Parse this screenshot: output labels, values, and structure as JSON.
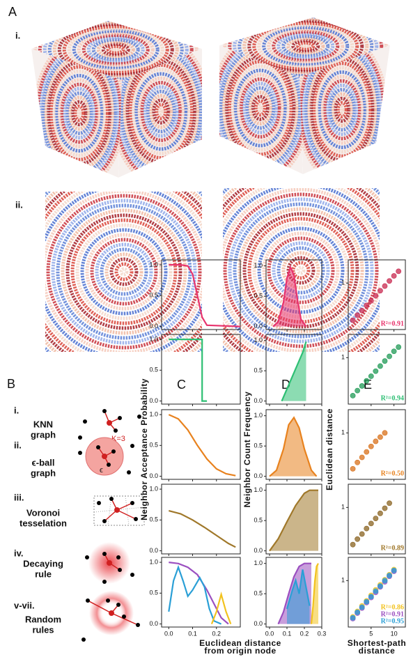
{
  "panel_a": {
    "label": "A",
    "row_labels": [
      "i.",
      "ii."
    ]
  },
  "panel_b": {
    "label": "B",
    "items": [
      {
        "numeral": "i.",
        "name": [
          "KNN",
          "graph"
        ],
        "note": "K=3"
      },
      {
        "numeral": "ii.",
        "name": [
          "ϵ-ball",
          "graph"
        ],
        "note": "ϵ"
      },
      {
        "numeral": "iii.",
        "name": [
          "Voronoi",
          "tesselation"
        ]
      },
      {
        "numeral": "iv.",
        "name": [
          "Decaying",
          "rule"
        ]
      },
      {
        "numeral": "v-vii.",
        "name": [
          "Random",
          "rules"
        ]
      }
    ]
  },
  "chart_data": [
    {
      "type": "line",
      "label": "C",
      "ylabel": "Neighbor Acceptance Probability",
      "xlabel": [
        "Euclidean distance",
        "from origin node"
      ],
      "xlim": [
        -0.03,
        0.3
      ],
      "xticks": [
        {
          "value": 0,
          "label": "0.0"
        },
        {
          "value": 0.1,
          "label": "0.1"
        },
        {
          "value": 0.2,
          "label": "0.2"
        }
      ],
      "ylim": [
        -0.05,
        1.08
      ],
      "yticks": [
        {
          "value": 0,
          "label": "0.0"
        },
        {
          "value": 0.5,
          "label": "0.5"
        },
        {
          "value": 1,
          "label": "1.0"
        }
      ],
      "panels": [
        {
          "series": [
            {
              "color": "#e8336d",
              "x": [
                0,
                0.05,
                0.08,
                0.1,
                0.12,
                0.14,
                0.16,
                0.3
              ],
              "values": [
                1,
                1,
                0.98,
                0.85,
                0.5,
                0.15,
                0.02,
                0
              ]
            }
          ]
        },
        {
          "series": [
            {
              "color": "#2dbf73",
              "x": [
                0,
                0.14,
                0.14,
                0.16
              ],
              "values": [
                1,
                1,
                0,
                0
              ]
            }
          ]
        },
        {
          "series": [
            {
              "color": "#e8821e",
              "x": [
                0,
                0.04,
                0.08,
                0.12,
                0.16,
                0.2,
                0.24,
                0.28
              ],
              "values": [
                1,
                0.93,
                0.75,
                0.5,
                0.28,
                0.12,
                0.04,
                0.01
              ]
            }
          ]
        },
        {
          "series": [
            {
              "color": "#a0782a",
              "x": [
                0,
                0.05,
                0.1,
                0.15,
                0.2,
                0.25,
                0.28
              ],
              "values": [
                0.65,
                0.6,
                0.5,
                0.38,
                0.25,
                0.12,
                0.06
              ]
            }
          ]
        },
        {
          "series": [
            {
              "color": "#9b4fc0",
              "x": [
                0,
                0.04,
                0.08,
                0.12,
                0.16,
                0.2,
                0.22,
                0.25
              ],
              "values": [
                1,
                0.98,
                0.92,
                0.8,
                0.55,
                0.25,
                0.1,
                0
              ]
            },
            {
              "color": "#2a9fd6",
              "x": [
                0,
                0.02,
                0.04,
                0.06,
                0.08,
                0.1,
                0.13,
                0.15,
                0.17,
                0.19,
                0.22
              ],
              "values": [
                0.2,
                0.7,
                0.92,
                0.7,
                0.45,
                0.55,
                0.75,
                0.6,
                0.25,
                0.05,
                0
              ]
            },
            {
              "color": "#f2c21e",
              "x": [
                0.18,
                0.2,
                0.22,
                0.24,
                0.26
              ],
              "values": [
                0,
                0.2,
                0.48,
                0.2,
                0
              ]
            }
          ]
        }
      ]
    },
    {
      "type": "area",
      "label": "D",
      "ylabel": "Neighbor Count Frequency",
      "xlim": [
        -0.02,
        0.3
      ],
      "xticks": [
        {
          "value": 0,
          "label": "0.0"
        },
        {
          "value": 0.1,
          "label": "0.1"
        },
        {
          "value": 0.2,
          "label": "0.2"
        },
        0.3
      ],
      "ylim": [
        -0.05,
        1.1
      ],
      "yticks": [
        {
          "value": 0,
          "label": "0.0"
        },
        {
          "value": 0.5,
          "label": "0.5"
        },
        {
          "value": 1,
          "label": "1.0"
        }
      ],
      "panels": [
        {
          "series": [
            {
              "color": "#e8336d",
              "x": [
                0.02,
                0.05,
                0.08,
                0.1,
                0.12,
                0.14,
                0.16,
                0.18,
                0.21
              ],
              "values": [
                0,
                0.08,
                0.4,
                0.8,
                0.98,
                0.85,
                0.45,
                0.12,
                0
              ]
            }
          ]
        },
        {
          "series": [
            {
              "color": "#2dbf73",
              "x": [
                0.07,
                0.1,
                0.13,
                0.16,
                0.19,
                0.21
              ],
              "values": [
                0,
                0.2,
                0.4,
                0.6,
                0.8,
                0.98
              ]
            }
          ]
        },
        {
          "series": [
            {
              "color": "#e8821e",
              "x": [
                0,
                0.04,
                0.08,
                0.11,
                0.14,
                0.17,
                0.2,
                0.24,
                0.27
              ],
              "values": [
                0,
                0.1,
                0.45,
                0.85,
                0.97,
                0.8,
                0.45,
                0.1,
                0
              ]
            }
          ]
        },
        {
          "series": [
            {
              "color": "#a0782a",
              "x": [
                0,
                0.05,
                0.1,
                0.15,
                0.2,
                0.23,
                0.28
              ],
              "values": [
                0,
                0.2,
                0.48,
                0.75,
                0.95,
                1,
                1
              ]
            }
          ]
        },
        {
          "series": [
            {
              "color": "#9b4fc0",
              "x": [
                0.05,
                0.08,
                0.11,
                0.14,
                0.17,
                0.2,
                0.24
              ],
              "values": [
                0,
                0.2,
                0.5,
                0.78,
                0.95,
                1,
                1
              ]
            },
            {
              "color": "#2a9fd6",
              "x": [
                0.1,
                0.13,
                0.15,
                0.17,
                0.19,
                0.21,
                0.23
              ],
              "values": [
                0.25,
                0.55,
                0.72,
                0.5,
                0.9,
                0.6,
                0.3
              ]
            },
            {
              "color": "#f2c21e",
              "x": [
                0.24,
                0.25,
                0.26,
                0.27,
                0.28
              ],
              "values": [
                0,
                0.3,
                0.7,
                0.95,
                1
              ]
            }
          ]
        }
      ]
    },
    {
      "type": "scatter",
      "label": "E",
      "ylabel": "Euclidean distance",
      "xlabel": [
        "Shortest-path",
        "distance"
      ],
      "xlim": [
        0,
        12.5
      ],
      "xticks": [
        5,
        10
      ],
      "ylim": [
        -0.1,
        1.55
      ],
      "yticks": [
        1
      ],
      "panels": [
        {
          "series": [
            {
              "color": "#c8284f",
              "x": [
                1,
                2,
                3,
                4,
                5,
                6,
                7,
                8,
                9,
                10,
                11
              ],
              "values": [
                0.12,
                0.24,
                0.35,
                0.47,
                0.58,
                0.7,
                0.82,
                0.93,
                1.05,
                1.17,
                1.28
              ]
            }
          ],
          "annotations": [
            {
              "text": "R²=0.91",
              "color": "#e8336d"
            }
          ]
        },
        {
          "series": [
            {
              "color": "#1f9a55",
              "x": [
                1,
                2,
                3,
                4,
                5,
                6,
                7,
                8,
                9,
                10,
                11
              ],
              "values": [
                0.1,
                0.22,
                0.33,
                0.45,
                0.56,
                0.68,
                0.8,
                0.92,
                1.03,
                1.15,
                1.25
              ]
            }
          ],
          "annotations": [
            {
              "text": "R²=0.94",
              "color": "#2dbf73"
            }
          ]
        },
        {
          "series": [
            {
              "color": "#d8701a",
              "x": [
                1,
                2,
                3,
                4,
                5,
                6,
                7,
                8
              ],
              "values": [
                0.15,
                0.3,
                0.42,
                0.55,
                0.68,
                0.8,
                0.9,
                1.0
              ]
            }
          ],
          "annotations": [
            {
              "text": "R²=0.50",
              "color": "#e8821e"
            }
          ]
        },
        {
          "series": [
            {
              "color": "#8a6320",
              "x": [
                1,
                2,
                3,
                4,
                5,
                6,
                7,
                8,
                9
              ],
              "values": [
                0.12,
                0.25,
                0.37,
                0.5,
                0.62,
                0.74,
                0.86,
                0.98,
                1.1
              ]
            }
          ],
          "annotations": [
            {
              "text": "R²=0.89",
              "color": "#a0782a"
            }
          ]
        },
        {
          "series": [
            {
              "color": "#f2c21e",
              "x": [
                1,
                2,
                3,
                4,
                5,
                6,
                7,
                8,
                9,
                10
              ],
              "values": [
                0.14,
                0.27,
                0.4,
                0.52,
                0.65,
                0.78,
                0.9,
                1.02,
                1.14,
                1.26
              ]
            },
            {
              "color": "#9b4fc0",
              "x": [
                1,
                2,
                3,
                4,
                5,
                6,
                7,
                8,
                9,
                10
              ],
              "values": [
                0.1,
                0.23,
                0.35,
                0.48,
                0.6,
                0.72,
                0.85,
                0.97,
                1.1,
                1.22
              ]
            },
            {
              "color": "#2a9fd6",
              "x": [
                1,
                2,
                3,
                4,
                5,
                6,
                7,
                8,
                9,
                10
              ],
              "values": [
                0.12,
                0.25,
                0.37,
                0.5,
                0.62,
                0.75,
                0.87,
                1.0,
                1.12,
                1.24
              ]
            }
          ],
          "annotations": [
            {
              "text": "R²=0.86",
              "color": "#f2c21e"
            },
            {
              "text": "R²=0.91",
              "color": "#9b4fc0"
            },
            {
              "text": "R²=0.95",
              "color": "#2a9fd6"
            }
          ]
        }
      ]
    }
  ]
}
